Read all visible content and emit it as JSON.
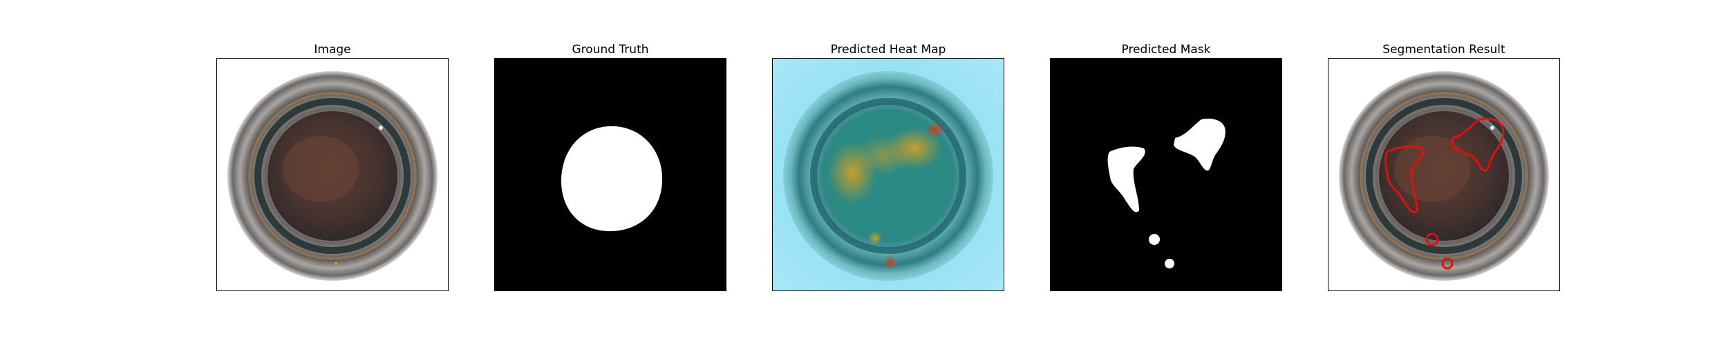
{
  "figure": {
    "panels": [
      {
        "title": "Image"
      },
      {
        "title": "Ground Truth"
      },
      {
        "title": "Predicted Heat Map"
      },
      {
        "title": "Predicted Mask"
      },
      {
        "title": "Segmentation Result"
      }
    ]
  },
  "colors": {
    "background": "#ffffff",
    "mask_background": "#000000",
    "mask_foreground": "#ffffff",
    "heat_low": "#8fe0f6",
    "heat_mid": "#1f8f8c",
    "heat_high": "#c8a020",
    "contour": "#e01010"
  }
}
